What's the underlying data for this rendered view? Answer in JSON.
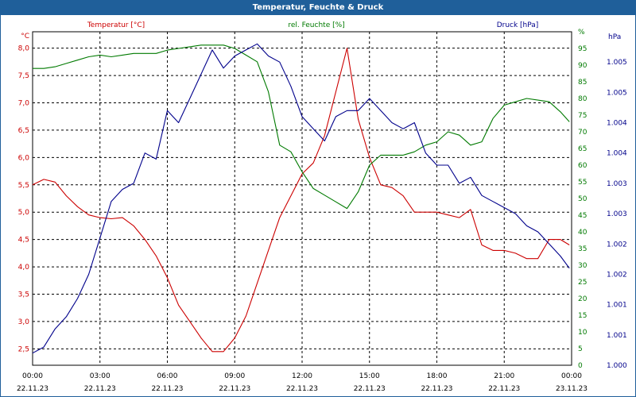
{
  "window": {
    "title": "Temperatur, Feuchte & Druck"
  },
  "colors": {
    "temperature": "#cc0000",
    "humidity": "#007a00",
    "pressure": "#00008b",
    "grid": "#000000",
    "title_bar": "#1f5f9a"
  },
  "chart_data": {
    "type": "line",
    "title": "Temperatur, Feuchte & Druck",
    "grid": true,
    "x_ticks": [
      {
        "time": "00:00",
        "date": "22.11.23"
      },
      {
        "time": "03:00",
        "date": "22.11.23"
      },
      {
        "time": "06:00",
        "date": "22.11.23"
      },
      {
        "time": "09:00",
        "date": "22.11.23"
      },
      {
        "time": "12:00",
        "date": "22.11.23"
      },
      {
        "time": "15:00",
        "date": "22.11.23"
      },
      {
        "time": "18:00",
        "date": "22.11.23"
      },
      {
        "time": "21:00",
        "date": "22.11.23"
      },
      {
        "time": "00:00",
        "date": "23.11.23"
      }
    ],
    "x_hours": [
      0,
      0.5,
      1,
      1.5,
      2,
      2.5,
      3,
      3.5,
      4,
      4.5,
      5,
      5.5,
      6,
      6.5,
      7,
      7.5,
      8,
      8.5,
      9,
      9.5,
      10,
      10.5,
      11,
      11.5,
      12,
      12.5,
      13,
      13.5,
      14,
      14.5,
      15,
      15.5,
      16,
      16.5,
      17,
      17.5,
      18,
      18.5,
      19,
      19.5,
      20,
      20.5,
      21,
      21.5,
      22,
      22.5,
      23,
      23.5,
      23.9
    ],
    "axes": {
      "temperature": {
        "label": "Temperatur [°C]",
        "unit": "°C",
        "ylim": [
          2.2,
          8.3
        ],
        "ticks": [
          "8,0",
          "7,5",
          "7,0",
          "6,5",
          "6,0",
          "5,5",
          "5,0",
          "4,5",
          "4,0",
          "3,5",
          "3,0",
          "2,5"
        ],
        "tick_values": [
          8.0,
          7.5,
          7.0,
          6.5,
          6.0,
          5.5,
          5.0,
          4.5,
          4.0,
          3.5,
          3.0,
          2.5
        ]
      },
      "humidity": {
        "label": "rel. Feuchte [%]",
        "unit": "%",
        "ylim": [
          0,
          100
        ],
        "ticks": [
          "%",
          "95",
          "90",
          "85",
          "80",
          "75",
          "70",
          "65",
          "60",
          "55",
          "50",
          "45",
          "40",
          "35",
          "30",
          "25",
          "20",
          "15",
          "10",
          "5",
          "0"
        ],
        "tick_values": [
          100,
          95,
          90,
          85,
          80,
          75,
          70,
          65,
          60,
          55,
          50,
          45,
          40,
          35,
          30,
          25,
          20,
          15,
          10,
          5,
          0
        ]
      },
      "pressure": {
        "label": "Druck [hPa]",
        "unit": "hPa",
        "ylim": [
          1.0,
          1.0055
        ],
        "ticks": [
          "1.005",
          "1.005",
          "1.004",
          "1.004",
          "1.003",
          "1.003",
          "1.002",
          "1.002",
          "1.001",
          "1.001",
          "1.000"
        ],
        "tick_values": [
          1.005,
          1.0045,
          1.004,
          1.0035,
          1.003,
          1.0025,
          1.002,
          1.0015,
          1.001,
          1.0005,
          1.0
        ]
      }
    },
    "series": [
      {
        "name": "Temperatur [°C]",
        "axis": "temperature",
        "values": [
          5.5,
          5.6,
          5.55,
          5.3,
          5.1,
          4.95,
          4.9,
          4.88,
          4.9,
          4.75,
          4.5,
          4.2,
          3.8,
          3.3,
          3.0,
          2.7,
          2.45,
          2.45,
          2.7,
          3.1,
          3.7,
          4.3,
          4.9,
          5.3,
          5.7,
          5.9,
          6.4,
          7.2,
          8.0,
          6.7,
          6.0,
          5.5,
          5.45,
          5.3,
          5.0,
          5.0,
          5.0,
          4.95,
          4.9,
          5.05,
          4.4,
          4.3,
          4.3,
          4.25,
          4.15,
          4.15,
          4.5,
          4.5,
          4.4
        ]
      },
      {
        "name": "rel. Feuchte [%]",
        "axis": "humidity",
        "values": [
          89,
          89,
          89.5,
          90.5,
          91.5,
          92.5,
          93,
          92.5,
          93,
          93.5,
          93.5,
          93.5,
          94.5,
          95,
          95.5,
          96,
          96,
          96,
          95,
          93,
          91,
          82,
          66,
          64,
          58,
          53,
          51,
          49,
          47,
          52,
          60,
          63,
          63,
          63,
          64,
          66,
          67,
          70,
          69,
          66,
          67,
          74,
          78,
          79,
          80,
          79.5,
          79,
          76,
          73
        ]
      },
      {
        "name": "Druck [hPa]",
        "axis": "pressure",
        "values": [
          1.0002,
          1.0003,
          1.0006,
          1.0008,
          1.0011,
          1.0015,
          1.0021,
          1.0027,
          1.0029,
          1.003,
          1.0035,
          1.0034,
          1.0042,
          1.004,
          1.0044,
          1.0048,
          1.0052,
          1.0049,
          1.0051,
          1.0052,
          1.0053,
          1.0051,
          1.005,
          1.0046,
          1.0041,
          1.0039,
          1.0037,
          1.0041,
          1.0042,
          1.0042,
          1.0044,
          1.0042,
          1.004,
          1.0039,
          1.004,
          1.0035,
          1.0033,
          1.0033,
          1.003,
          1.0031,
          1.0028,
          1.0027,
          1.0026,
          1.0025,
          1.0023,
          1.0022,
          1.002,
          1.0018,
          1.0016
        ]
      }
    ]
  }
}
